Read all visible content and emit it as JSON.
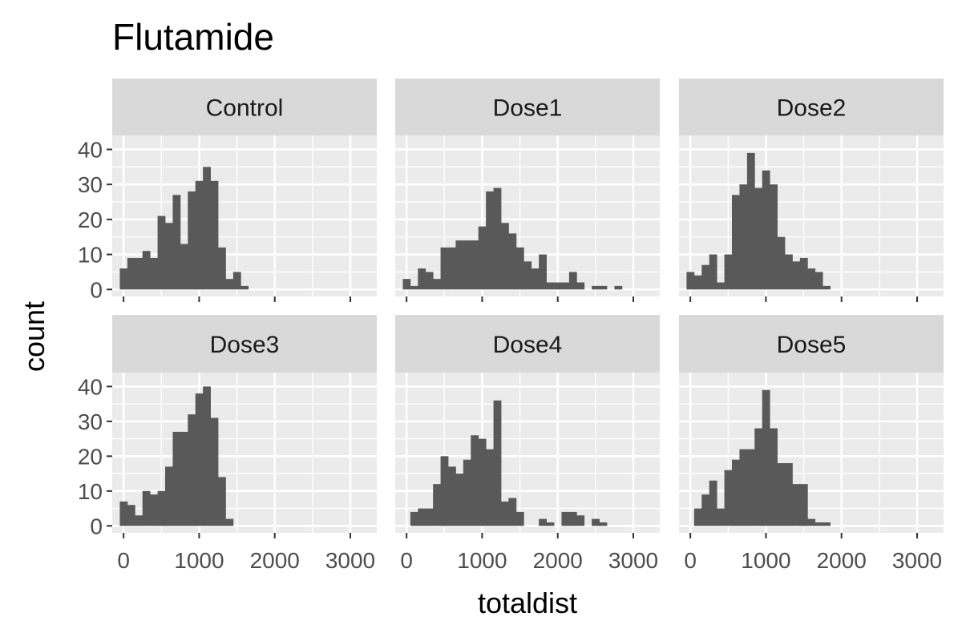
{
  "chart_data": {
    "type": "bar",
    "subtype": "faceted-histogram",
    "title": "Flutamide",
    "xlabel": "totaldist",
    "ylabel": "count",
    "xlim": [
      -150,
      3350
    ],
    "ylim": [
      -2,
      44
    ],
    "x_ticks": [
      0,
      1000,
      2000,
      3000
    ],
    "y_ticks": [
      0,
      10,
      20,
      30,
      40
    ],
    "bin_width": 100,
    "bin_start": -50,
    "grid": true,
    "facet_layout": {
      "rows": 2,
      "cols": 3
    },
    "bar_color": "#595959",
    "panel_background": "#ebebeb",
    "strip_background": "#d9d9d9",
    "grid_color": "#ffffff",
    "facets": [
      {
        "name": "Control",
        "counts": [
          6,
          9,
          9,
          11,
          9,
          21,
          19,
          27,
          13,
          28,
          31,
          35,
          31,
          12,
          3,
          5,
          1
        ]
      },
      {
        "name": "Dose1",
        "counts": [
          3,
          1,
          6,
          5,
          3,
          12,
          12,
          14,
          14,
          14,
          18,
          28,
          29,
          19,
          16,
          12,
          8,
          6,
          10,
          2,
          2,
          2,
          5,
          2,
          0,
          1,
          1,
          0,
          1
        ]
      },
      {
        "name": "Dose2",
        "counts": [
          5,
          4,
          7,
          10,
          2,
          10,
          27,
          30,
          39,
          29,
          34,
          30,
          15,
          10,
          8,
          9,
          6,
          5,
          1
        ]
      },
      {
        "name": "Dose3",
        "counts": [
          7,
          6,
          3,
          10,
          9,
          10,
          17,
          27,
          27,
          32,
          38,
          40,
          31,
          14,
          2
        ]
      },
      {
        "name": "Dose4",
        "counts": [
          0,
          4,
          5,
          5,
          12,
          20,
          17,
          15,
          19,
          26,
          25,
          22,
          36,
          7,
          8,
          4,
          0,
          0,
          2,
          1,
          0,
          4,
          4,
          3,
          0,
          2,
          1
        ]
      },
      {
        "name": "Dose5",
        "counts": [
          0,
          5,
          9,
          13,
          5,
          16,
          19,
          22,
          22,
          28,
          39,
          28,
          18,
          18,
          12,
          12,
          2,
          1,
          1
        ]
      }
    ]
  }
}
